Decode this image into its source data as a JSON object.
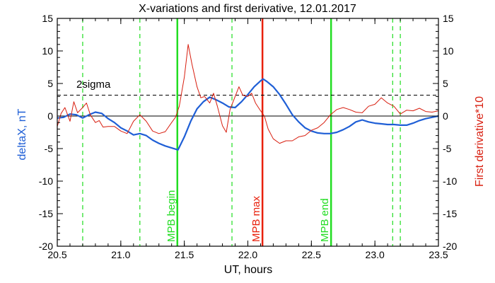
{
  "chart_data": {
    "type": "line",
    "title": "X-variations and first derivative, 12.01.2017",
    "xlabel": "UT, hours",
    "ylabel_left": "deltaX, nT",
    "ylabel_right": "First derivative*10",
    "xlim": [
      20.5,
      23.5
    ],
    "ylim": [
      -20,
      15
    ],
    "xticks": [
      20.5,
      21.0,
      21.5,
      22.0,
      22.5,
      23.0,
      23.5
    ],
    "xtick_labels": [
      "20.5",
      "21.0",
      "21.5",
      "22.0",
      "22.5",
      "23.0",
      "23.5"
    ],
    "yticks": [
      -20,
      -15,
      -10,
      -5,
      0,
      5,
      10,
      15
    ],
    "ytick_labels": [
      "-20",
      "-15",
      "-10",
      "-5",
      "0",
      "5",
      "10",
      "15"
    ],
    "colors": {
      "deltaX": "#1f5fd6",
      "derivative": "#d81e0f",
      "mpb_max": "#e8200c",
      "mpb_edges": "#22dd22",
      "dashed_green": "#2ee02e",
      "sigma": "#000000",
      "axes": "#000000"
    },
    "series": [
      {
        "key": "deltaX",
        "axis": "left",
        "x": [
          20.5,
          20.55,
          20.6,
          20.65,
          20.7,
          20.75,
          20.8,
          20.85,
          20.9,
          20.95,
          21.0,
          21.05,
          21.1,
          21.15,
          21.2,
          21.25,
          21.3,
          21.35,
          21.4,
          21.45,
          21.5,
          21.55,
          21.6,
          21.65,
          21.7,
          21.75,
          21.8,
          21.85,
          21.9,
          21.95,
          22.0,
          22.05,
          22.1,
          22.12,
          22.15,
          22.2,
          22.25,
          22.3,
          22.35,
          22.4,
          22.45,
          22.5,
          22.55,
          22.6,
          22.65,
          22.7,
          22.75,
          22.8,
          22.85,
          22.9,
          22.95,
          23.0,
          23.05,
          23.1,
          23.15,
          23.2,
          23.25,
          23.3,
          23.35,
          23.4,
          23.45,
          23.5
        ],
        "y": [
          -0.3,
          -0.2,
          0.3,
          0.2,
          -0.3,
          0.2,
          0.6,
          0.4,
          -0.4,
          -1.0,
          -1.8,
          -2.3,
          -2.9,
          -2.7,
          -3.0,
          -3.7,
          -4.2,
          -4.6,
          -4.9,
          -5.2,
          -3.2,
          -0.8,
          1.1,
          2.2,
          2.9,
          2.5,
          2.0,
          1.4,
          1.3,
          2.2,
          3.3,
          4.5,
          5.4,
          5.7,
          5.3,
          4.5,
          3.3,
          1.8,
          0.2,
          -0.9,
          -1.8,
          -2.3,
          -2.6,
          -2.7,
          -2.7,
          -2.5,
          -2.1,
          -1.6,
          -0.9,
          -0.6,
          -0.9,
          -1.1,
          -1.2,
          -1.3,
          -1.3,
          -1.4,
          -1.4,
          -1.1,
          -0.7,
          -0.4,
          -0.2,
          0.0
        ]
      },
      {
        "key": "derivative",
        "axis": "left",
        "x": [
          20.5,
          20.53,
          20.56,
          20.6,
          20.63,
          20.66,
          20.7,
          20.73,
          20.76,
          20.8,
          20.83,
          20.86,
          20.9,
          20.95,
          21.0,
          21.05,
          21.1,
          21.15,
          21.2,
          21.25,
          21.3,
          21.35,
          21.4,
          21.43,
          21.46,
          21.5,
          21.53,
          21.56,
          21.6,
          21.63,
          21.66,
          21.7,
          21.73,
          21.76,
          21.8,
          21.83,
          21.86,
          21.9,
          21.93,
          21.96,
          22.0,
          22.03,
          22.06,
          22.1,
          22.13,
          22.16,
          22.2,
          22.25,
          22.3,
          22.35,
          22.4,
          22.45,
          22.5,
          22.55,
          22.6,
          22.65,
          22.7,
          22.75,
          22.8,
          22.85,
          22.9,
          22.95,
          23.0,
          23.05,
          23.1,
          23.15,
          23.2,
          23.25,
          23.3,
          23.35,
          23.4,
          23.45,
          23.5
        ],
        "y": [
          -1.6,
          0.4,
          1.3,
          -0.8,
          2.2,
          0.5,
          1.3,
          2.0,
          0.2,
          -1.0,
          -0.7,
          -1.7,
          -1.6,
          -1.6,
          -2.3,
          -2.7,
          -0.8,
          0.2,
          -0.8,
          -2.3,
          -2.7,
          -2.4,
          -1.0,
          -0.2,
          1.5,
          6.0,
          11.0,
          8.0,
          4.5,
          2.8,
          3.0,
          2.0,
          3.5,
          1.5,
          -1.5,
          -2.5,
          1.0,
          3.0,
          4.5,
          3.2,
          3.0,
          3.5,
          2.0,
          0.8,
          0.0,
          -2.0,
          -3.5,
          -4.2,
          -3.8,
          -3.8,
          -3.2,
          -3.0,
          -2.2,
          -1.8,
          -1.0,
          0.2,
          1.0,
          1.3,
          1.0,
          0.6,
          0.5,
          1.5,
          1.8,
          2.8,
          2.0,
          1.5,
          0.3,
          0.9,
          0.8,
          1.2,
          0.7,
          0.6,
          0.8
        ]
      }
    ],
    "reference_lines": {
      "zero": 0,
      "sigma_level": 3.2,
      "sigma_label": "2sigma"
    },
    "vertical_markers": [
      {
        "x": 21.445,
        "style": "solid",
        "color_key": "mpb_edges",
        "label": "MPB begin"
      },
      {
        "x": 22.115,
        "style": "solid",
        "color_key": "mpb_max",
        "label": "MPB max"
      },
      {
        "x": 22.655,
        "style": "solid",
        "color_key": "mpb_edges",
        "label": "MPB end"
      },
      {
        "x": 20.7,
        "style": "dashed",
        "color_key": "dashed_green",
        "label": ""
      },
      {
        "x": 21.15,
        "style": "dashed",
        "color_key": "dashed_green",
        "label": ""
      },
      {
        "x": 21.875,
        "style": "dashed",
        "color_key": "dashed_green",
        "label": ""
      },
      {
        "x": 23.14,
        "style": "dashed",
        "color_key": "dashed_green",
        "label": ""
      },
      {
        "x": 23.2,
        "style": "dashed",
        "color_key": "dashed_green",
        "label": ""
      }
    ],
    "grid": false
  }
}
